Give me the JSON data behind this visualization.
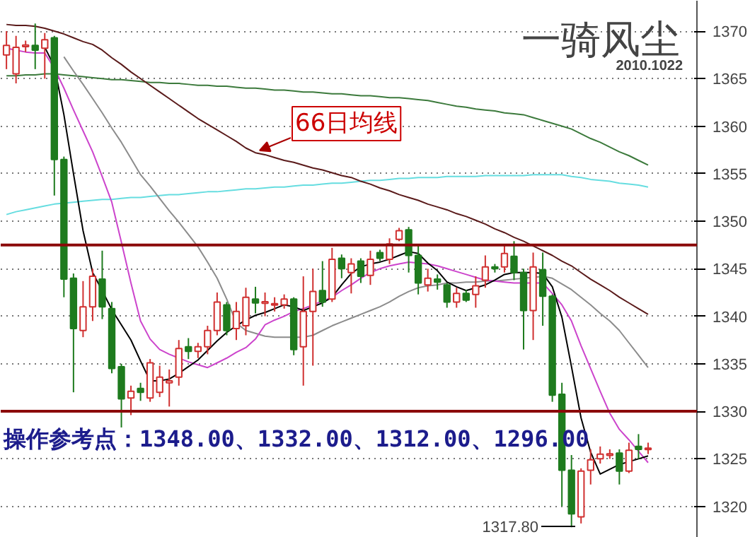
{
  "chart_data": {
    "type": "candlestick",
    "title": "一骑风尘",
    "subtitle": "2010.1022",
    "categories": [
      null,
      null,
      null,
      null,
      null,
      null,
      null,
      null,
      null,
      null,
      null,
      null,
      null,
      null,
      null,
      null,
      null,
      null,
      null,
      null,
      null,
      null,
      null,
      null,
      null,
      null,
      null,
      null,
      null,
      null,
      null,
      null,
      null,
      null,
      null,
      null,
      null,
      null,
      null,
      null,
      null,
      null,
      null,
      null,
      null,
      null,
      null,
      null,
      null,
      null,
      null,
      null,
      null,
      null,
      null,
      null,
      null,
      null,
      null,
      null,
      null,
      null,
      null,
      null,
      null,
      null,
      null,
      null
    ],
    "colors": [
      "#d03030",
      "#d03030",
      "#d03030",
      "#1e7b1e",
      "#d03030",
      "#1e7b1e",
      "#1e7b1e",
      "#1e7b1e",
      "#d03030",
      "#d03030",
      "#1e7b1e",
      "#1e7b1e",
      "#1e7b1e",
      "#d03030",
      "#1e7b1e",
      "#d03030",
      "#d03030",
      "#d03030",
      "#d03030",
      "#1e7b1e",
      "#d03030",
      "#d03030",
      "#d03030",
      "#1e7b1e",
      "#d03030",
      "#d03030",
      "#1e7b1e",
      "#d03030",
      "#d03030",
      "#d03030",
      "#1e7b1e",
      "#d03030",
      "#d03030",
      "#1e7b1e",
      "#d03030",
      "#1e7b1e",
      "#d03030",
      "#1e7b1e",
      "#d03030",
      "#1e7b1e",
      "#d03030",
      "#d03030",
      "#1e7b1e",
      "#1e7b1e",
      "#d03030",
      "#1e7b1e",
      "#1e7b1e",
      "#d03030",
      "#1e7b1e",
      "#d03030",
      "#d03030",
      "#1e7b1e",
      "#d03030",
      "#1e7b1e",
      "#1e7b1e",
      "#d03030",
      "#1e7b1e",
      "#1e7b1e",
      "#1e7b1e",
      "#1e7b1e",
      "#d03030",
      "#d03030",
      "#d03030",
      "#d03030",
      "#1e7b1e",
      "#d03030",
      "#1e7b1e",
      "#d03030"
    ],
    "ohlc": [
      [
        1367.5,
        1370,
        1366,
        1368.5
      ],
      [
        1365.5,
        1369.5,
        1364.5,
        1368.3
      ],
      [
        1368.4,
        1369,
        1367.8,
        1368.5
      ],
      [
        1368.5,
        1370.8,
        1366,
        1368
      ],
      [
        1368.2,
        1369.8,
        1365,
        1369.1
      ],
      [
        1369.3,
        1369.5,
        1352.7,
        1356.5
      ],
      [
        1356.5,
        1356.8,
        1342,
        1343.9
      ],
      [
        1344,
        1344.5,
        1332,
        1338.7
      ],
      [
        1338.5,
        1343.7,
        1337.8,
        1341
      ],
      [
        1341,
        1345,
        1339.5,
        1344.2
      ],
      [
        1343.9,
        1346.9,
        1339.7,
        1341
      ],
      [
        1340.8,
        1341.5,
        1334,
        1334.5
      ],
      [
        1334.7,
        1335,
        1328.3,
        1331.3
      ],
      [
        1331.4,
        1332.7,
        1329.6,
        1332.1
      ],
      [
        1332.4,
        1333,
        1331.1,
        1332
      ],
      [
        1331.4,
        1335.5,
        1331,
        1335.1
      ],
      [
        1332,
        1334.8,
        1331.5,
        1333.6
      ],
      [
        1333,
        1334.4,
        1330.5,
        1333.2
      ],
      [
        1333.6,
        1337.5,
        1332.7,
        1336.6
      ],
      [
        1336.8,
        1337.7,
        1335.5,
        1336.3
      ],
      [
        1336.3,
        1337.2,
        1335.6,
        1336.8
      ],
      [
        1336.8,
        1339,
        1336,
        1338.5
      ],
      [
        1338.5,
        1342.5,
        1338,
        1341.5
      ],
      [
        1341.2,
        1341.5,
        1338,
        1338.5
      ],
      [
        1338.7,
        1341.5,
        1337.5,
        1340.5
      ],
      [
        1339,
        1343,
        1338,
        1342
      ],
      [
        1341.8,
        1343.1,
        1340.3,
        1341.4
      ],
      [
        1341.4,
        1342.5,
        1340,
        1341.5
      ],
      [
        1341.2,
        1342,
        1340.5,
        1341.3
      ],
      [
        1341.2,
        1342.3,
        1340.8,
        1341.8
      ],
      [
        1341.8,
        1342,
        1335.9,
        1336.5
      ],
      [
        1336.8,
        1344.2,
        1332.7,
        1340.5
      ],
      [
        1340.5,
        1345,
        1334.8,
        1342.6
      ],
      [
        1342.7,
        1345.8,
        1341,
        1341.5
      ],
      [
        1341.8,
        1347.2,
        1341.5,
        1346
      ],
      [
        1346.1,
        1346.5,
        1344,
        1345
      ],
      [
        1344.6,
        1346.1,
        1342.4,
        1345.5
      ],
      [
        1345.8,
        1346.1,
        1343.5,
        1344.2
      ],
      [
        1344.3,
        1346.9,
        1343.3,
        1346
      ],
      [
        1346.7,
        1347,
        1345.8,
        1346.1
      ],
      [
        1346,
        1348.2,
        1345.5,
        1347.6
      ],
      [
        1348.1,
        1349.3,
        1347.9,
        1349
      ],
      [
        1349.1,
        1349.4,
        1344.6,
        1346.4
      ],
      [
        1346.4,
        1347.5,
        1342.3,
        1343.5
      ],
      [
        1343.3,
        1345,
        1342.6,
        1344
      ],
      [
        1343.9,
        1344.4,
        1342.8,
        1343.6
      ],
      [
        1343.3,
        1343.5,
        1340.9,
        1341.5
      ],
      [
        1341.5,
        1343,
        1340.9,
        1342.4
      ],
      [
        1342.4,
        1342.8,
        1341.5,
        1341.7
      ],
      [
        1342.3,
        1344.2,
        1340.9,
        1343.2
      ],
      [
        1343.8,
        1346.4,
        1343,
        1345.2
      ],
      [
        1345.2,
        1345.5,
        1344.6,
        1345
      ],
      [
        1345.2,
        1347.5,
        1344.6,
        1346.6
      ],
      [
        1346.3,
        1347.9,
        1343.8,
        1344.6
      ],
      [
        1344.6,
        1345,
        1336.5,
        1340.6
      ],
      [
        1340.6,
        1346.7,
        1337.5,
        1345.2
      ],
      [
        1344.9,
        1346.7,
        1339,
        1342.1
      ],
      [
        1342.1,
        1342.3,
        1331,
        1331.7
      ],
      [
        1331.8,
        1333,
        1320,
        1323.8
      ],
      [
        1323.8,
        1325.4,
        1317.8,
        1319.2
      ],
      [
        1318.9,
        1324,
        1318.2,
        1323.7
      ],
      [
        1323.8,
        1326,
        1322.3,
        1324.9
      ],
      [
        1325,
        1326.3,
        1324.5,
        1325.5
      ],
      [
        1325.4,
        1326,
        1325,
        1325.5
      ],
      [
        1325.6,
        1326,
        1322.3,
        1323.7
      ],
      [
        1323.7,
        1326.7,
        1323.5,
        1325.9
      ],
      [
        1326.3,
        1327.6,
        1325,
        1326
      ],
      [
        1326,
        1326.7,
        1325.5,
        1326.1
      ]
    ],
    "series": [
      {
        "type": "line",
        "color": "#3c7a3c",
        "values": [
          1365.3,
          1365.3,
          1365.4,
          1365.4,
          1365.5,
          1365.5,
          1365.4,
          1365.3,
          1365.2,
          1365.1,
          1365.0,
          1364.9,
          1364.9,
          1364.8,
          1364.7,
          1364.6,
          1364.6,
          1364.5,
          1364.5,
          1364.4,
          1364.3,
          1364.3,
          1364.2,
          1364.2,
          1364.1,
          1364.0,
          1364.0,
          1363.9,
          1363.8,
          1363.8,
          1363.7,
          1363.6,
          1363.6,
          1363.5,
          1363.4,
          1363.4,
          1363.3,
          1363.2,
          1363.2,
          1363.1,
          1363.0,
          1363.0,
          1362.9,
          1362.8,
          1362.7,
          1362.5,
          1362.3,
          1362.1,
          1362.0,
          1361.8,
          1361.7,
          1361.6,
          1361.4,
          1361.3,
          1361.2,
          1360.9,
          1360.6,
          1360.3,
          1360.0,
          1359.7,
          1359.2,
          1358.7,
          1358.3,
          1357.8,
          1357.3,
          1356.9,
          1356.4,
          1355.9
        ]
      },
      {
        "type": "line",
        "color": "#66dde0",
        "values": [
          1350.7,
          1351.0,
          1351.2,
          1351.4,
          1351.6,
          1351.8,
          1351.9,
          1352.0,
          1352.1,
          1352.2,
          1352.3,
          1352.3,
          1352.4,
          1352.5,
          1352.5,
          1352.6,
          1352.7,
          1352.8,
          1352.8,
          1352.9,
          1353.0,
          1353.1,
          1353.1,
          1353.2,
          1353.3,
          1353.4,
          1353.4,
          1353.5,
          1353.6,
          1353.6,
          1353.7,
          1353.8,
          1353.8,
          1353.9,
          1354.0,
          1354.0,
          1354.1,
          1354.2,
          1354.3,
          1354.3,
          1354.4,
          1354.5,
          1354.5,
          1354.6,
          1354.6,
          1354.6,
          1354.7,
          1354.7,
          1354.7,
          1354.7,
          1354.8,
          1354.8,
          1354.8,
          1354.8,
          1354.8,
          1354.9,
          1354.9,
          1354.9,
          1354.9,
          1354.7,
          1354.6,
          1354.4,
          1354.3,
          1354.2,
          1354.0,
          1353.9,
          1353.8,
          1353.6
        ]
      },
      {
        "type": "line",
        "color": "#5a1a1a",
        "values": [
          1370.7,
          1370.6,
          1370.6,
          1370.5,
          1370.3,
          1370.0,
          1369.7,
          1369.3,
          1368.9,
          1368.6,
          1368.0,
          1367.2,
          1366.5,
          1365.7,
          1365.0,
          1364.3,
          1363.6,
          1362.9,
          1362.2,
          1361.5,
          1360.8,
          1360.2,
          1359.6,
          1359.0,
          1358.4,
          1357.7,
          1357.2,
          1357.0,
          1356.7,
          1356.4,
          1356.2,
          1355.9,
          1355.6,
          1355.4,
          1355.1,
          1354.8,
          1354.6,
          1354.2,
          1353.9,
          1353.5,
          1353.2,
          1352.8,
          1352.5,
          1352.2,
          1351.8,
          1351.5,
          1351.2,
          1350.8,
          1350.5,
          1350.1,
          1349.7,
          1349.2,
          1348.8,
          1348.3,
          1347.9,
          1347.4,
          1346.9,
          1346.4,
          1345.8,
          1345.3,
          1344.6,
          1343.9,
          1343.3,
          1342.7,
          1342.0,
          1341.4,
          1340.8,
          1340.2
        ]
      },
      {
        "type": "line",
        "color": "#8c8c8c",
        "values": [
          null,
          null,
          null,
          null,
          null,
          null,
          1367.3,
          1365.8,
          1364.4,
          1362.9,
          1361.4,
          1359.8,
          1358.3,
          1356.6,
          1354.9,
          1353.7,
          1352.4,
          1351.1,
          1349.9,
          1348.6,
          1347.3,
          1345.7,
          1344.0,
          1341.8,
          1339.3,
          1338.5,
          1338.2,
          1337.9,
          1337.8,
          1337.8,
          1337.8,
          1337.8,
          1338.0,
          1338.5,
          1339.0,
          1339.4,
          1339.8,
          1340.2,
          1340.6,
          1341.0,
          1341.5,
          1342.1,
          1342.6,
          1343.0,
          1343.2,
          1343.3,
          1343.5,
          1343.5,
          1343.6,
          1343.6,
          1343.7,
          1343.7,
          1343.8,
          1343.9,
          1344.0,
          1344.1,
          1344.2,
          1344.0,
          1343.4,
          1342.8,
          1342.0,
          1341.2,
          1340.3,
          1339.5,
          1338.5,
          1337.2,
          1335.9,
          1334.6
        ]
      },
      {
        "type": "line",
        "color": "#cc44cc",
        "values": [
          1368.2,
          1368.0,
          1367.8,
          1367.7,
          1367.7,
          1366.1,
          1364.0,
          1361.7,
          1359.5,
          1357.3,
          1354.7,
          1352.0,
          1347.8,
          1343.5,
          1339.5,
          1337.6,
          1336.5,
          1336.0,
          1335.6,
          1335.2,
          1334.9,
          1334.6,
          1335.1,
          1335.6,
          1336.2,
          1336.7,
          1337.6,
          1339.1,
          1339.6,
          1340.0,
          1340.5,
          1340.8,
          1341.2,
          1341.6,
          1342.0,
          1342.7,
          1343.3,
          1344.0,
          1344.6,
          1345.0,
          1345.3,
          1345.5,
          1345.7,
          1345.6,
          1345.5,
          1345.3,
          1345.0,
          1344.7,
          1344.4,
          1344.1,
          1343.8,
          1343.7,
          1343.6,
          1343.5,
          1343.5,
          1343.5,
          1343.5,
          1342.4,
          1341.2,
          1339.5,
          1336.9,
          1334.5,
          1332.1,
          1329.8,
          1328.1,
          1327.0,
          1325.8,
          1324.6
        ]
      },
      {
        "type": "line",
        "color": "#000000",
        "values": [
          null,
          null,
          null,
          null,
          1368.3,
          1366.3,
          1361.2,
          1355.0,
          1349.0,
          1344.6,
          1342.7,
          1340.7,
          1339.1,
          1337.5,
          1335.3,
          1333.2,
          1333.2,
          1333.4,
          1334.0,
          1334.7,
          1335.4,
          1336.4,
          1337.4,
          1338.3,
          1339.0,
          1339.6,
          1340.1,
          1340.4,
          1340.8,
          1341.2,
          1341.0,
          1340.6,
          1341.0,
          1341.4,
          1342.0,
          1343.3,
          1344.5,
          1345.2,
          1345.5,
          1345.7,
          1346.0,
          1346.4,
          1346.8,
          1346.6,
          1345.6,
          1344.8,
          1343.6,
          1343.1,
          1342.7,
          1343.0,
          1343.3,
          1343.8,
          1344.4,
          1344.6,
          1344.6,
          1344.6,
          1344.5,
          1343.1,
          1339.9,
          1334.7,
          1329.3,
          1325.7,
          1323.4,
          1323.9,
          1324.4,
          1324.7,
          1325.0,
          1325.3
        ]
      }
    ],
    "ylim": [
      1316.7,
      1373.2
    ],
    "yticks": [
      1320,
      1325,
      1330,
      1335,
      1340,
      1345,
      1350,
      1355,
      1360,
      1365,
      1370
    ],
    "grid": "y",
    "ref_lines": [
      {
        "axis": "y",
        "value": 1347.5,
        "color": "#8b0a0a"
      },
      {
        "axis": "y",
        "value": 1330,
        "color": "#8b0a0a"
      }
    ],
    "annotations": [
      "66日均线",
      "1317.80",
      "操作参考点：1348.00、1332.00、1312.00、1296.00"
    ]
  }
}
